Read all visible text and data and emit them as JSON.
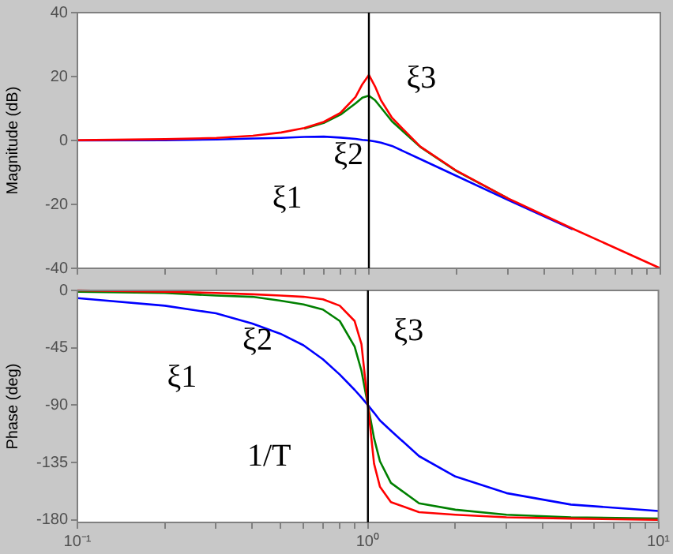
{
  "chart_data": [
    {
      "type": "line",
      "ylabel": "Magnitude (dB)",
      "log": "x",
      "tick_labels": "y",
      "marker": "none",
      "x": [
        0.1,
        0.2,
        0.3,
        0.4,
        0.5,
        0.6,
        0.7,
        0.8,
        0.9,
        0.95,
        1,
        1.05,
        1.1,
        1.2,
        1.5,
        2,
        3,
        5,
        10
      ],
      "series": [
        {
          "color": "#0000ff",
          "values": [
            0,
            0.1,
            0.3,
            0.6,
            0.8,
            1.1,
            1.2,
            0.9,
            0.5,
            0.2,
            0,
            -0.3,
            -0.7,
            -1.7,
            -5.8,
            -11.1,
            -18.6,
            -27.8,
            null
          ]
        },
        {
          "color": "#008000",
          "values": [
            null,
            null,
            null,
            null,
            null,
            3.7,
            5.5,
            8.1,
            11.6,
            13.4,
            14,
            12.6,
            10.3,
            6,
            -2,
            -9.6,
            -18.1,
            null,
            null
          ]
        },
        {
          "color": "#ff0000",
          "values": [
            0.1,
            0.4,
            0.8,
            1.5,
            2.5,
            3.9,
            5.8,
            8.7,
            13.6,
            17.6,
            20.5,
            16.9,
            12.6,
            7.1,
            -1.9,
            -9.5,
            -18.1,
            -27.6,
            -40
          ]
        }
      ],
      "xlim": [
        0.1,
        10
      ],
      "xticks": [
        {
          "value": 0.1,
          "label": null
        },
        {
          "value": 0.2,
          "label": null
        },
        {
          "value": 0.3,
          "label": null
        },
        {
          "value": 0.4,
          "label": null
        },
        {
          "value": 0.5,
          "label": null
        },
        {
          "value": 0.6,
          "label": null
        },
        {
          "value": 0.7,
          "label": null
        },
        {
          "value": 0.8,
          "label": null
        },
        {
          "value": 0.9,
          "label": null
        },
        {
          "value": 1,
          "label": null
        },
        {
          "value": 2,
          "label": null
        },
        {
          "value": 3,
          "label": null
        },
        {
          "value": 4,
          "label": null
        },
        {
          "value": 5,
          "label": null
        },
        {
          "value": 6,
          "label": null
        },
        {
          "value": 7,
          "label": null
        },
        {
          "value": 8,
          "label": null
        },
        {
          "value": 9,
          "label": null
        },
        {
          "value": 10,
          "label": null
        }
      ],
      "ylim": [
        -40,
        40
      ],
      "yticks": [
        -40,
        -20,
        0,
        20,
        40
      ],
      "ref_lines": [
        {
          "axis": "x",
          "value": 1,
          "color": "#000000"
        }
      ],
      "annotations": [
        "ξ3",
        "ξ2",
        "ξ1"
      ]
    },
    {
      "type": "line",
      "ylabel": "Phase (deg)",
      "log": "x",
      "marker": "none",
      "x": [
        0.1,
        0.2,
        0.3,
        0.4,
        0.5,
        0.6,
        0.7,
        0.8,
        0.9,
        0.95,
        1,
        1.05,
        1.1,
        1.2,
        1.5,
        2,
        3,
        5,
        10
      ],
      "series": [
        {
          "color": "#0000ff",
          "values": [
            -6,
            -12,
            -18,
            -26,
            -34,
            -43,
            -54,
            -66,
            -78,
            -84,
            -90,
            -96,
            -102,
            -110,
            -130,
            -146,
            -159,
            -168,
            -173
          ]
        },
        {
          "color": "#008000",
          "values": [
            -1,
            -2,
            -4,
            -5,
            -8,
            -11,
            -15,
            -24,
            -44,
            -63,
            -90,
            -116,
            -134,
            -151,
            -167,
            -172,
            -176,
            -178,
            -179
          ]
        },
        {
          "color": "#ff0000",
          "values": [
            0,
            -1,
            -2,
            -3,
            -4,
            -5,
            -7,
            -12,
            -24,
            -42,
            -90,
            -136,
            -154,
            -166,
            -174,
            -176,
            -178,
            -179,
            -180
          ]
        }
      ],
      "xlim": [
        0.1,
        10
      ],
      "xticks": [
        {
          "value": 0.1,
          "label": "10⁻¹"
        },
        {
          "value": 0.2,
          "label": null
        },
        {
          "value": 0.3,
          "label": null
        },
        {
          "value": 0.4,
          "label": null
        },
        {
          "value": 0.5,
          "label": null
        },
        {
          "value": 0.6,
          "label": null
        },
        {
          "value": 0.7,
          "label": null
        },
        {
          "value": 0.8,
          "label": null
        },
        {
          "value": 0.9,
          "label": null
        },
        {
          "value": 1,
          "label": "10⁰"
        },
        {
          "value": 2,
          "label": null
        },
        {
          "value": 3,
          "label": null
        },
        {
          "value": 4,
          "label": null
        },
        {
          "value": 5,
          "label": null
        },
        {
          "value": 6,
          "label": null
        },
        {
          "value": 7,
          "label": null
        },
        {
          "value": 8,
          "label": null
        },
        {
          "value": 9,
          "label": null
        },
        {
          "value": 10,
          "label": "10¹"
        }
      ],
      "ylim": [
        -182,
        0
      ],
      "yticks": [
        -180,
        -135,
        -90,
        -45,
        0
      ],
      "ref_lines": [
        {
          "axis": "x",
          "value": 1,
          "color": "#000000"
        }
      ],
      "annotations": [
        "ξ2",
        "ξ3",
        "ξ1",
        "1/T"
      ]
    }
  ]
}
